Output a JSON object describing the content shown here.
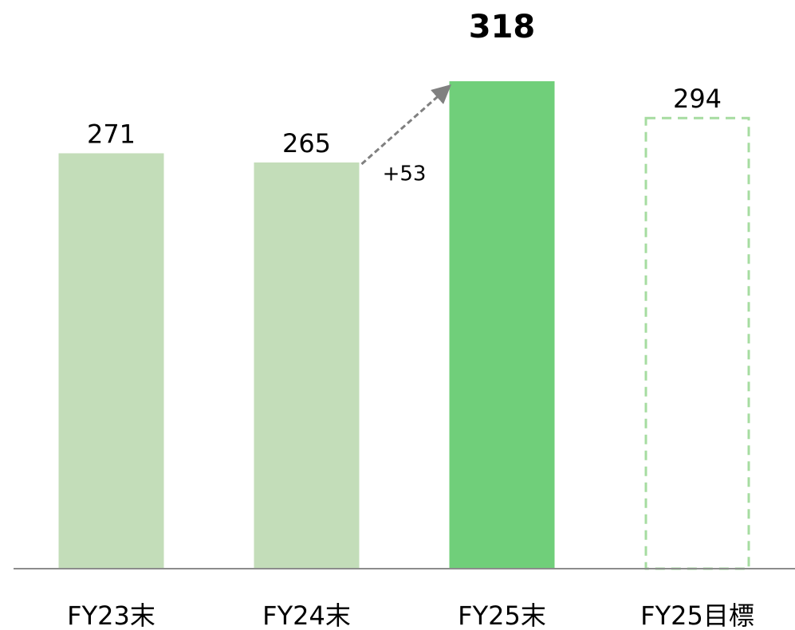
{
  "chart_data": {
    "type": "bar",
    "categories": [
      "FY23末",
      "FY24末",
      "FY25末",
      "FY25目標"
    ],
    "values": [
      271,
      265,
      318,
      294
    ],
    "colors": [
      "#c3ddb9",
      "#c3ddb9",
      "#70cf7a",
      "#a6dca0"
    ],
    "dashed": [
      false,
      false,
      false,
      true
    ],
    "bold_labels": [
      false,
      false,
      true,
      false
    ],
    "annotation": "+53",
    "ylim": [
      0,
      371
    ]
  }
}
